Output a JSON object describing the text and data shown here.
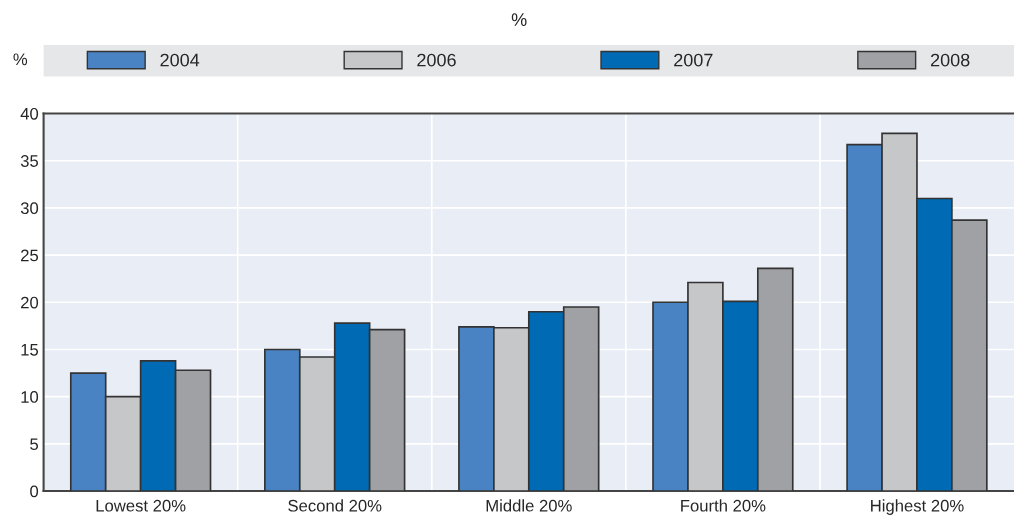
{
  "chart_data": {
    "type": "bar",
    "subtitle": "%",
    "ylabel": "%",
    "categories": [
      "Lowest 20%",
      "Second 20%",
      "Middle 20%",
      "Fourth 20%",
      "Highest 20%"
    ],
    "series": [
      {
        "name": "2004",
        "color": "#4a83c3",
        "values": [
          12.5,
          15.0,
          17.4,
          20.0,
          36.7
        ]
      },
      {
        "name": "2006",
        "color": "#c6c7c9",
        "values": [
          10.0,
          14.2,
          17.3,
          22.1,
          37.9
        ]
      },
      {
        "name": "2007",
        "color": "#006ab4",
        "values": [
          13.8,
          17.8,
          19.0,
          20.1,
          31.0
        ]
      },
      {
        "name": "2008",
        "color": "#a0a1a5",
        "values": [
          12.8,
          17.1,
          19.5,
          23.6,
          28.7
        ]
      }
    ],
    "ylim": [
      0,
      40
    ],
    "yticks": [
      0,
      5,
      10,
      15,
      20,
      25,
      30,
      35,
      40
    ],
    "grid": true,
    "legend": "top"
  }
}
